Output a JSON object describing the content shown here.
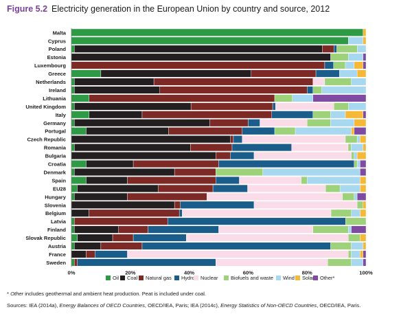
{
  "figure": {
    "number": "Figure 5.2",
    "title": "Electricity generation in the European Union by country and source, 2012"
  },
  "notes": {
    "other_note_term": "Other",
    "other_note_rest": " includes geothermal and ambient heat production. Peat is included under coal.",
    "sources_prefix": "Sources: IEA (2014a), ",
    "sources_title_1": "Energy Balances of OECD Countries",
    "sources_mid": ", OECD/IEA, Paris; IEA (2014c), ",
    "sources_title_2": "Energy Statistics of Non-OECD Countries",
    "sources_suffix": ", OECD/IEA, Paris."
  },
  "chart_data": {
    "type": "bar",
    "orientation": "horizontal",
    "stacked": "percent",
    "title": "",
    "xlabel": "",
    "ylabel": "",
    "xlim": [
      0,
      100
    ],
    "x_ticks": [
      "0%",
      "20%",
      "40%",
      "60%",
      "80%",
      "100%"
    ],
    "grid": false,
    "legend_position": "bottom",
    "categories": [
      "Malta",
      "Cyprus",
      "Poland",
      "Estonia",
      "Luxembourg",
      "Greece",
      "Netherlands",
      "Ireland",
      "Lithuania",
      "United Kingdom",
      "Italy",
      "Germany",
      "Portugal",
      "Czech Republic",
      "Romania",
      "Bulgaria",
      "Croatia",
      "Denmark",
      "Spain",
      "EU28",
      "Hungary",
      "Slovenia",
      "Belgium",
      "Latvia",
      "Finland",
      "Slovak Republic",
      "Austria",
      "France",
      "Sweden"
    ],
    "bold_categories": [
      "EU28"
    ],
    "series": [
      {
        "name": "Oil",
        "color": "#2e9a46",
        "values": [
          99,
          94,
          1,
          0,
          0,
          10,
          1,
          1,
          6,
          1,
          6,
          1,
          5,
          0,
          1,
          0,
          5,
          1,
          5,
          2,
          1,
          0,
          0,
          1,
          1,
          2,
          1,
          0,
          1
        ]
      },
      {
        "name": "Coal",
        "color": "#231f20",
        "values": [
          0,
          0,
          85,
          88,
          0,
          51,
          27,
          29,
          0,
          40,
          18,
          46,
          28,
          54,
          39,
          49,
          16,
          34,
          14,
          28,
          18,
          35,
          6,
          0,
          15,
          12,
          9,
          5,
          0
        ]
      },
      {
        "name": "Natural gas",
        "color": "#7d2a26",
        "values": [
          0,
          0,
          4,
          0,
          86,
          22,
          54,
          50,
          63,
          28,
          44,
          13,
          25,
          1,
          14,
          5,
          29,
          14,
          30,
          19,
          27,
          2,
          31,
          32,
          10,
          7,
          14,
          3,
          1
        ]
      },
      {
        "name": "Hydro",
        "color": "#1a5d8a",
        "values": [
          0,
          0,
          1,
          0,
          3,
          8,
          0,
          2,
          0,
          1,
          14,
          4,
          11,
          3,
          20,
          8,
          46,
          0,
          8,
          12,
          0,
          25,
          1,
          61,
          24,
          18,
          64,
          11,
          47
        ]
      },
      {
        "name": "Nuclear",
        "color": "#fadce9",
        "values": [
          0,
          0,
          0,
          0,
          0,
          0,
          4,
          0,
          0,
          20,
          0,
          16,
          0,
          35,
          19,
          33,
          0,
          0,
          21,
          27,
          46,
          35,
          51,
          0,
          32,
          55,
          0,
          75,
          38
        ]
      },
      {
        "name": "Biofuels and waste",
        "color": "#9dd17a",
        "values": [
          0,
          0,
          7,
          6,
          4,
          0,
          9,
          3,
          6,
          5,
          6,
          8,
          7,
          4,
          1,
          1,
          1,
          16,
          2,
          5,
          4,
          2,
          7,
          7,
          12,
          4,
          7,
          1,
          8
        ]
      },
      {
        "name": "Wind",
        "color": "#a8d7f0",
        "values": [
          0,
          5,
          3,
          5,
          3,
          6,
          5,
          15,
          7,
          6,
          5,
          8,
          19,
          1,
          4,
          1,
          1,
          33,
          18,
          7,
          1,
          0,
          3,
          0,
          1,
          0,
          4,
          3,
          4
        ]
      },
      {
        "name": "Solar",
        "color": "#f5b937",
        "values": [
          1,
          1,
          0,
          0,
          3,
          3,
          0,
          0,
          0,
          0,
          6,
          4,
          1,
          2,
          1,
          3,
          0,
          0,
          2,
          2,
          0,
          1,
          2,
          0,
          0,
          2,
          1,
          1,
          0
        ]
      },
      {
        "name": "Other*",
        "color": "#7f4aa1",
        "values": [
          0,
          0,
          0,
          1,
          1,
          0,
          0,
          0,
          18,
          0,
          1,
          0,
          4,
          0,
          0,
          0,
          2,
          2,
          0,
          0,
          3,
          0,
          0,
          0,
          5,
          0,
          0,
          1,
          1
        ]
      }
    ]
  }
}
